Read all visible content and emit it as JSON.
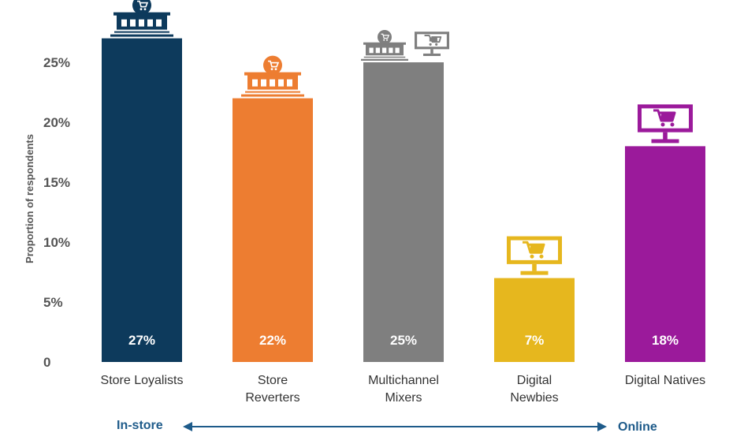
{
  "chart_data": {
    "type": "bar",
    "ylabel": "Proportion of respondents",
    "categories": [
      "Store Loyalists",
      "Store Reverters",
      "Multichannel Mixers",
      "Digital Newbies",
      "Digital Natives"
    ],
    "category_lines": [
      [
        "Store Loyalists"
      ],
      [
        "Store",
        "Reverters"
      ],
      [
        "Multichannel",
        "Mixers"
      ],
      [
        "Digital",
        "Newbies"
      ],
      [
        "Digital Natives"
      ]
    ],
    "values": [
      27,
      22,
      25,
      7,
      18
    ],
    "value_labels": [
      "27%",
      "22%",
      "25%",
      "7%",
      "18%"
    ],
    "colors": [
      "#0d3a5c",
      "#ed7d31",
      "#7f7f7f",
      "#e6b71e",
      "#9b1a9b"
    ],
    "icons": [
      "store-icon",
      "store-icon",
      "store-and-computer-cart-icon",
      "computer-cart-icon",
      "computer-cart-icon"
    ],
    "yticks": [
      0,
      5,
      10,
      15,
      20,
      25
    ],
    "ytick_labels": [
      "0",
      "5%",
      "10%",
      "15%",
      "20%",
      "25%"
    ],
    "ylim": [
      0,
      30
    ],
    "grid": false,
    "spectrum": {
      "left": "In-store",
      "right": "Online",
      "color": "#1e5b8a"
    }
  }
}
